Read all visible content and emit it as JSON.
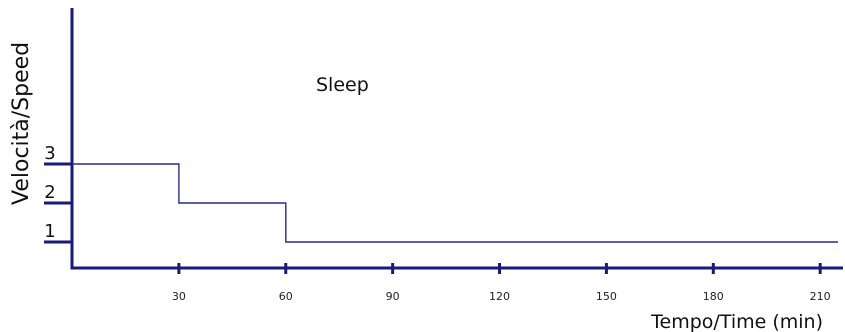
{
  "chart_data": {
    "type": "line",
    "step": true,
    "x": [
      0,
      30,
      30,
      60,
      60,
      215
    ],
    "series": [
      {
        "values": [
          3,
          3,
          2,
          2,
          1,
          1
        ],
        "color": "#2a2a8a"
      }
    ],
    "xlabel": "Tempo/Time (min)",
    "ylabel": "Velocità/Speed",
    "xticks": [
      30,
      60,
      90,
      120,
      150,
      180,
      210
    ],
    "yticks": [
      1,
      2,
      3
    ],
    "xlim": [
      0,
      215
    ],
    "ylim": [
      0,
      7
    ],
    "annotation": "Sleep",
    "grid": false,
    "axis_color": "#1a1a7a"
  }
}
